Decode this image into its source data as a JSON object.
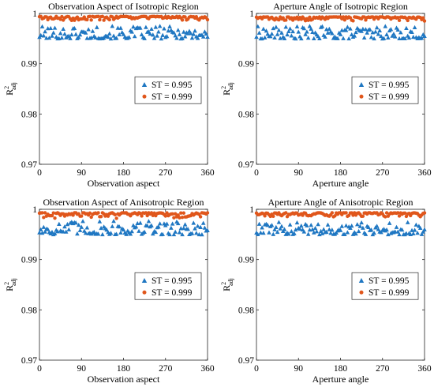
{
  "chart_data": [
    {
      "type": "scatter",
      "title": "Observation Aspect of Isotropic Region",
      "xlabel": "Observation aspect",
      "ylabel": "R",
      "ylabel_sup": "2",
      "ylabel_sub": "adj",
      "xlim": [
        0,
        360
      ],
      "ylim": [
        0.97,
        1.0
      ],
      "xticks": [
        "0",
        "90",
        "180",
        "270",
        "360"
      ],
      "yticks": [
        "0.97",
        "0.98",
        "0.99",
        "1"
      ],
      "grid": false,
      "legend_placement": "center-right",
      "series": [
        {
          "name": "ST = 0.995",
          "marker": "triangle",
          "color": "#1f77c2",
          "y_min": 0.995,
          "y_max": 0.9975,
          "x_step": 3
        },
        {
          "name": "ST = 0.999",
          "marker": "circle",
          "color": "#e0561b",
          "y_min": 0.9986,
          "y_max": 0.9994,
          "x_step": 3
        }
      ]
    },
    {
      "type": "scatter",
      "title": "Aperture Angle of Isotropic Region",
      "xlabel": "Aperture angle",
      "ylabel": "R",
      "ylabel_sup": "2",
      "ylabel_sub": "adj",
      "xlim": [
        0,
        360
      ],
      "ylim": [
        0.97,
        1.0
      ],
      "xticks": [
        "0",
        "90",
        "180",
        "270",
        "360"
      ],
      "yticks": [
        "0.97",
        "0.98",
        "0.99",
        "1"
      ],
      "grid": false,
      "legend_placement": "center-right",
      "series": [
        {
          "name": "ST = 0.995",
          "marker": "triangle",
          "color": "#1f77c2",
          "y_min": 0.995,
          "y_max": 0.9975,
          "x_step": 3
        },
        {
          "name": "ST = 0.999",
          "marker": "circle",
          "color": "#e0561b",
          "y_min": 0.9985,
          "y_max": 0.9993,
          "x_step": 3
        }
      ]
    },
    {
      "type": "scatter",
      "title": "Observation Aspect of Anisotropic Region",
      "xlabel": "Observation aspect",
      "ylabel": "R",
      "ylabel_sup": "2",
      "ylabel_sub": "adj",
      "xlim": [
        0,
        360
      ],
      "ylim": [
        0.97,
        1.0
      ],
      "xticks": [
        "0",
        "90",
        "180",
        "270",
        "360"
      ],
      "yticks": [
        "0.97",
        "0.98",
        "0.99",
        "1"
      ],
      "grid": false,
      "legend_placement": "center-right",
      "series": [
        {
          "name": "ST = 0.995",
          "marker": "triangle",
          "color": "#1f77c2",
          "y_min": 0.995,
          "y_max": 0.9978,
          "x_step": 3
        },
        {
          "name": "ST = 0.999",
          "marker": "circle",
          "color": "#e0561b",
          "y_min": 0.9982,
          "y_max": 0.9993,
          "x_step": 3
        }
      ]
    },
    {
      "type": "scatter",
      "title": "Aperture Angle of Anisotropic Region",
      "xlabel": "Aperture angle",
      "ylabel": "R",
      "ylabel_sup": "2",
      "ylabel_sub": "adj",
      "xlim": [
        0,
        360
      ],
      "ylim": [
        0.97,
        1.0
      ],
      "xticks": [
        "0",
        "90",
        "180",
        "270",
        "360"
      ],
      "yticks": [
        "0.97",
        "0.98",
        "0.99",
        "1"
      ],
      "grid": false,
      "legend_placement": "center-right",
      "series": [
        {
          "name": "ST = 0.995",
          "marker": "triangle",
          "color": "#1f77c2",
          "y_min": 0.995,
          "y_max": 0.9975,
          "x_step": 3
        },
        {
          "name": "ST = 0.999",
          "marker": "circle",
          "color": "#e0561b",
          "y_min": 0.9985,
          "y_max": 0.9993,
          "x_step": 3
        }
      ]
    }
  ]
}
